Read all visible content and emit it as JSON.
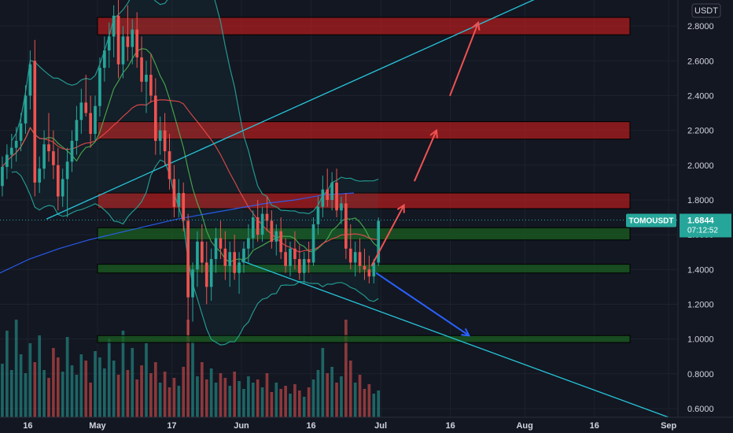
{
  "chart_data": {
    "type": "candlestick",
    "symbol": "TOMOUSDT",
    "currency": "USDT",
    "last_price": "1.6844",
    "countdown": "07:12:52",
    "y_axis": {
      "range": [
        0.55,
        2.95
      ],
      "ticks": [
        0.6,
        0.8,
        1.0,
        1.2,
        1.4,
        1.6,
        1.8,
        2.0,
        2.2,
        2.4,
        2.6,
        2.8
      ],
      "tick_labels": [
        "0.6000",
        "0.8000",
        "1.0000",
        "1.2000",
        "1.4000",
        "1.6000",
        "1.8000",
        "2.0000",
        "2.2000",
        "2.4000",
        "2.6000",
        "2.8000"
      ]
    },
    "x_axis": {
      "start": "2022-04-10",
      "end": "2022-09-03",
      "ticks": [
        {
          "date": "2022-04-16",
          "label": "16"
        },
        {
          "date": "2022-05-01",
          "label": "May"
        },
        {
          "date": "2022-05-17",
          "label": "17"
        },
        {
          "date": "2022-06-01",
          "label": "Jun"
        },
        {
          "date": "2022-06-16",
          "label": "16"
        },
        {
          "date": "2022-07-01",
          "label": "Jul"
        },
        {
          "date": "2022-07-16",
          "label": "16"
        },
        {
          "date": "2022-08-01",
          "label": "Aug"
        },
        {
          "date": "2022-08-16",
          "label": "16"
        },
        {
          "date": "2022-09-01",
          "label": "Sep"
        }
      ]
    },
    "candles_start": "2022-04-10",
    "candles": [
      [
        1.88,
        2.05,
        1.82,
        1.99
      ],
      [
        1.99,
        2.12,
        1.92,
        2.06
      ],
      [
        2.06,
        2.18,
        1.98,
        2.1
      ],
      [
        2.1,
        2.22,
        2.02,
        2.14
      ],
      [
        2.14,
        2.3,
        2.08,
        2.24
      ],
      [
        2.24,
        2.46,
        2.18,
        2.4
      ],
      [
        2.4,
        2.66,
        2.32,
        2.58
      ],
      [
        2.6,
        2.72,
        1.82,
        1.9
      ],
      [
        1.9,
        2.05,
        1.84,
        1.98
      ],
      [
        1.98,
        2.2,
        1.92,
        2.12
      ],
      [
        2.12,
        2.3,
        2.02,
        2.08
      ],
      [
        2.08,
        2.2,
        1.92,
        2.0
      ],
      [
        2.0,
        2.1,
        1.74,
        1.82
      ],
      [
        1.82,
        1.98,
        1.76,
        1.92
      ],
      [
        1.92,
        2.1,
        1.7,
        2.02
      ],
      [
        2.02,
        2.2,
        1.96,
        2.14
      ],
      [
        2.14,
        2.34,
        2.06,
        2.26
      ],
      [
        2.26,
        2.44,
        2.18,
        2.36
      ],
      [
        2.36,
        2.52,
        2.28,
        2.3
      ],
      [
        2.3,
        2.4,
        2.1,
        2.18
      ],
      [
        2.18,
        2.4,
        2.14,
        2.34
      ],
      [
        2.34,
        2.62,
        2.28,
        2.56
      ],
      [
        2.56,
        2.74,
        2.48,
        2.66
      ],
      [
        2.66,
        2.82,
        2.56,
        2.74
      ],
      [
        2.74,
        2.92,
        2.62,
        2.86
      ],
      [
        2.86,
        2.95,
        2.5,
        2.58
      ],
      [
        2.58,
        2.8,
        2.5,
        2.74
      ],
      [
        2.74,
        2.92,
        2.6,
        2.68
      ],
      [
        2.68,
        2.84,
        2.58,
        2.78
      ],
      [
        2.78,
        2.88,
        2.56,
        2.62
      ],
      [
        2.62,
        2.74,
        2.42,
        2.48
      ],
      [
        2.48,
        2.6,
        2.3,
        2.52
      ],
      [
        2.52,
        2.64,
        2.36,
        2.4
      ],
      [
        2.4,
        2.5,
        2.06,
        2.14
      ],
      [
        2.14,
        2.28,
        2.06,
        2.2
      ],
      [
        2.2,
        2.3,
        2.0,
        2.08
      ],
      [
        2.08,
        2.18,
        1.86,
        1.92
      ],
      [
        1.92,
        2.0,
        1.7,
        1.76
      ],
      [
        1.76,
        1.92,
        1.7,
        1.84
      ],
      [
        1.84,
        1.9,
        1.62,
        1.68
      ],
      [
        1.68,
        1.72,
        1.02,
        1.24
      ],
      [
        1.24,
        1.44,
        1.1,
        1.4
      ],
      [
        1.4,
        1.62,
        1.3,
        1.56
      ],
      [
        1.56,
        1.66,
        1.38,
        1.44
      ],
      [
        1.44,
        1.56,
        1.2,
        1.3
      ],
      [
        1.3,
        1.52,
        1.22,
        1.46
      ],
      [
        1.46,
        1.64,
        1.38,
        1.58
      ],
      [
        1.58,
        1.68,
        1.46,
        1.52
      ],
      [
        1.52,
        1.62,
        1.34,
        1.42
      ],
      [
        1.42,
        1.56,
        1.3,
        1.5
      ],
      [
        1.5,
        1.6,
        1.34,
        1.38
      ],
      [
        1.38,
        1.5,
        1.26,
        1.44
      ],
      [
        1.44,
        1.56,
        1.38,
        1.52
      ],
      [
        1.52,
        1.66,
        1.44,
        1.58
      ],
      [
        1.58,
        1.74,
        1.52,
        1.7
      ],
      [
        1.7,
        1.8,
        1.56,
        1.6
      ],
      [
        1.6,
        1.76,
        1.56,
        1.72
      ],
      [
        1.72,
        1.82,
        1.62,
        1.68
      ],
      [
        1.68,
        1.74,
        1.52,
        1.56
      ],
      [
        1.56,
        1.66,
        1.48,
        1.62
      ],
      [
        1.62,
        1.7,
        1.46,
        1.5
      ],
      [
        1.5,
        1.58,
        1.38,
        1.42
      ],
      [
        1.42,
        1.56,
        1.36,
        1.52
      ],
      [
        1.52,
        1.62,
        1.4,
        1.46
      ],
      [
        1.46,
        1.54,
        1.34,
        1.38
      ],
      [
        1.38,
        1.5,
        1.32,
        1.46
      ],
      [
        1.46,
        1.56,
        1.38,
        1.44
      ],
      [
        1.44,
        1.7,
        1.42,
        1.66
      ],
      [
        1.66,
        1.82,
        1.6,
        1.76
      ],
      [
        1.76,
        1.94,
        1.7,
        1.86
      ],
      [
        1.86,
        1.98,
        1.76,
        1.8
      ],
      [
        1.8,
        1.96,
        1.74,
        1.9
      ],
      [
        1.9,
        1.98,
        1.7,
        1.74
      ],
      [
        1.74,
        1.82,
        1.66,
        1.78
      ],
      [
        1.78,
        1.84,
        1.46,
        1.52
      ],
      [
        1.52,
        1.66,
        1.4,
        1.44
      ],
      [
        1.44,
        1.56,
        1.36,
        1.5
      ],
      [
        1.5,
        1.58,
        1.38,
        1.42
      ],
      [
        1.42,
        1.52,
        1.34,
        1.4
      ],
      [
        1.4,
        1.48,
        1.32,
        1.36
      ],
      [
        1.36,
        1.46,
        1.32,
        1.44
      ],
      [
        1.44,
        1.7,
        1.42,
        1.68
      ]
    ],
    "volume": [
      0.34,
      0.55,
      0.3,
      0.62,
      0.4,
      0.28,
      0.47,
      0.35,
      0.52,
      0.3,
      0.25,
      0.44,
      0.38,
      0.29,
      0.51,
      0.33,
      0.27,
      0.4,
      0.36,
      0.22,
      0.42,
      0.38,
      0.31,
      0.5,
      0.36,
      0.27,
      0.55,
      0.3,
      0.44,
      0.24,
      0.33,
      0.47,
      0.28,
      0.35,
      0.22,
      0.29,
      0.19,
      0.25,
      0.2,
      0.32,
      0.62,
      0.48,
      0.26,
      0.35,
      0.24,
      0.31,
      0.22,
      0.28,
      0.25,
      0.2,
      0.29,
      0.23,
      0.18,
      0.26,
      0.22,
      0.24,
      0.19,
      0.28,
      0.16,
      0.22,
      0.18,
      0.2,
      0.15,
      0.21,
      0.17,
      0.13,
      0.19,
      0.24,
      0.3,
      0.44,
      0.28,
      0.32,
      0.22,
      0.26,
      0.62,
      0.36,
      0.22,
      0.27,
      0.18,
      0.21,
      0.15,
      0.17
    ],
    "zones": [
      {
        "color": "red",
        "top": 2.85,
        "bottom": 2.75
      },
      {
        "color": "red",
        "top": 2.25,
        "bottom": 2.15
      },
      {
        "color": "red",
        "top": 1.84,
        "bottom": 1.75
      },
      {
        "color": "green",
        "top": 1.64,
        "bottom": 1.57
      },
      {
        "color": "green",
        "top": 1.43,
        "bottom": 1.38
      },
      {
        "color": "green",
        "top": 1.02,
        "bottom": 0.98
      }
    ],
    "trendlines": [
      {
        "from": [
          "2022-04-20",
          1.69
        ],
        "to": [
          "2022-08-07",
          3.0
        ],
        "color": "#26c6da"
      },
      {
        "from": [
          "2022-06-01",
          1.45
        ],
        "to": [
          "2022-09-02",
          0.54
        ],
        "color": "#26c6da"
      }
    ],
    "projection_arrows": [
      {
        "color": "#f05252",
        "points": [
          [
            "2022-06-29",
            1.42
          ],
          [
            "2022-07-06",
            1.77
          ],
          [
            "2022-07-13",
            2.2
          ],
          [
            "2022-07-22",
            2.82
          ]
        ]
      },
      {
        "color": "#2962ff",
        "points": [
          [
            "2022-06-30",
            1.38
          ],
          [
            "2022-07-20",
            1.02
          ]
        ]
      }
    ],
    "ma_lines": {
      "red_ma_color": "#e94b4b",
      "green_band_color": "#4caf50",
      "blue_ma_color": "#2962ff",
      "teal_ma_color": "#26a69a"
    },
    "colors": {
      "up": "#26a69a",
      "down": "#ef5350",
      "background": "#131722",
      "price_label": "#26a69a"
    }
  }
}
